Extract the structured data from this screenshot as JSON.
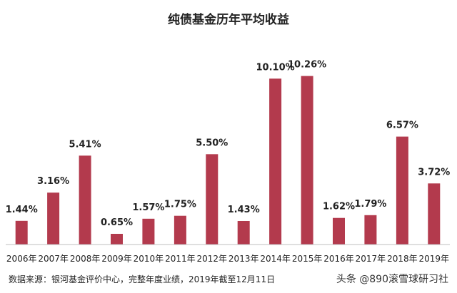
{
  "chart_data": {
    "type": "bar",
    "title": "纯债基金历年平均收益",
    "categories": [
      "2006年",
      "2007年",
      "2008年",
      "2009年",
      "2010年",
      "2011年",
      "2012年",
      "2013年",
      "2014年",
      "2015年",
      "2016年",
      "2017年",
      "2018年",
      "2019年"
    ],
    "values": [
      1.44,
      3.16,
      5.41,
      0.65,
      1.57,
      1.75,
      5.5,
      1.43,
      10.1,
      10.26,
      1.62,
      1.79,
      6.57,
      3.72
    ],
    "value_labels": [
      "1.44%",
      "3.16%",
      "5.41%",
      "0.65%",
      "1.57%",
      "1.75%",
      "5.50%",
      "1.43%",
      "10.10%",
      "10.26%",
      "1.62%",
      "1.79%",
      "6.57%",
      "3.72%"
    ],
    "ylim": [
      0,
      11.5
    ],
    "grid": false,
    "legend": "none",
    "colors": {
      "bar": "#b33a4d",
      "baseline": "#bfbfbf",
      "text": "#222222"
    }
  },
  "footer": {
    "source": "数据来源：银河基金评价中心，完整年度业绩，2019年截至12月11日",
    "watermark": "头条 @890滚雪球研习社"
  }
}
